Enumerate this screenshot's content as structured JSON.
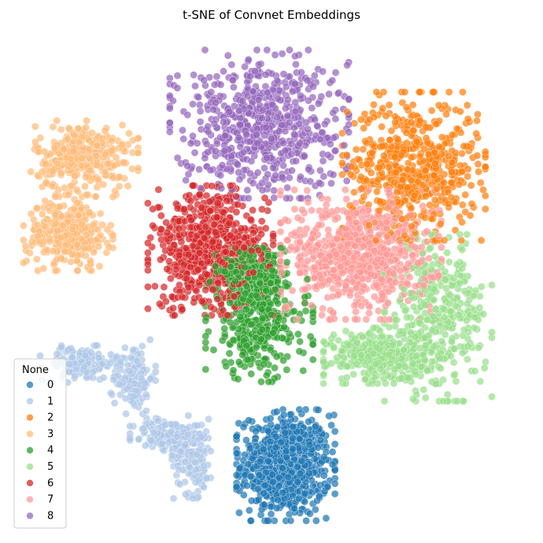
{
  "chart_data": {
    "type": "scatter",
    "title": "t-SNE of Convnet Embeddings",
    "xlabel": "",
    "ylabel": "",
    "axes_visible": false,
    "grid": false,
    "xlim": [
      -60,
      60
    ],
    "ylim": [
      -60,
      60
    ],
    "legend": {
      "title": "None",
      "placement": "lower-left",
      "entries": [
        "0",
        "1",
        "2",
        "3",
        "4",
        "5",
        "6",
        "7",
        "8"
      ]
    },
    "series": [
      {
        "name": "0",
        "color": "#1f77b4",
        "point_count": 700,
        "clusters": [
          {
            "center": [
              3.5,
              -43
            ],
            "spread": [
              5.5,
              6
            ]
          }
        ]
      },
      {
        "name": "1",
        "color": "#aec7e8",
        "point_count": 520,
        "clusters": [
          {
            "center": [
              -47,
              -19
            ],
            "spread": [
              4.5,
              2
            ]
          },
          {
            "center": [
              -34,
              -22
            ],
            "spread": [
              2.5,
              4
            ]
          },
          {
            "center": [
              -26,
              -36
            ],
            "spread": [
              4,
              2
            ]
          },
          {
            "center": [
              -19,
              -41
            ],
            "spread": [
              2.5,
              4.5
            ]
          }
        ]
      },
      {
        "name": "2",
        "color": "#ff7f0e",
        "point_count": 560,
        "clusters": [
          {
            "center": [
              35,
              28
            ],
            "spread": [
              8,
              8
            ]
          }
        ]
      },
      {
        "name": "3",
        "color": "#ffbb78",
        "point_count": 620,
        "clusters": [
          {
            "center": [
              -46,
              30
            ],
            "spread": [
              6,
              4
            ]
          },
          {
            "center": [
              -50,
              12
            ],
            "spread": [
              5,
              4
            ]
          }
        ]
      },
      {
        "name": "4",
        "color": "#2ca02c",
        "point_count": 620,
        "clusters": [
          {
            "center": [
              -3,
              -10
            ],
            "spread": [
              6,
              6
            ]
          },
          {
            "center": [
              -5,
              2
            ],
            "spread": [
              4,
              3
            ]
          }
        ]
      },
      {
        "name": "5",
        "color": "#98df8a",
        "point_count": 680,
        "clusters": [
          {
            "center": [
              41,
              -8
            ],
            "spread": [
              6,
              9
            ]
          },
          {
            "center": [
              26,
              -17
            ],
            "spread": [
              6,
              3
            ]
          }
        ]
      },
      {
        "name": "6",
        "color": "#d62728",
        "point_count": 620,
        "clusters": [
          {
            "center": [
              -15,
              8
            ],
            "spread": [
              7,
              7
            ]
          }
        ]
      },
      {
        "name": "7",
        "color": "#ff9896",
        "point_count": 720,
        "clusters": [
          {
            "center": [
              22,
              7
            ],
            "spread": [
              9,
              7
            ]
          }
        ]
      },
      {
        "name": "8",
        "color": "#9467bd",
        "point_count": 640,
        "clusters": [
          {
            "center": [
              -3,
              38
            ],
            "spread": [
              10,
              8
            ]
          }
        ]
      }
    ]
  }
}
